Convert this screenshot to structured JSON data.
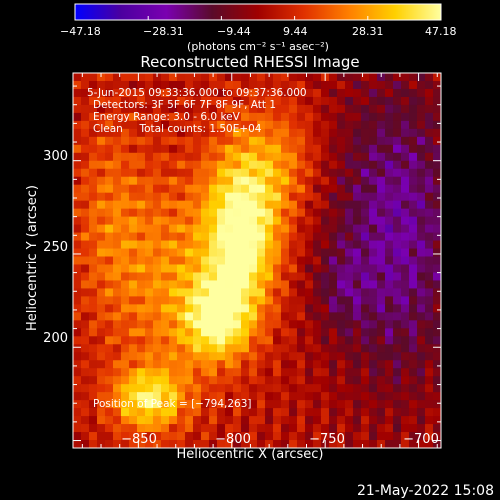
{
  "chart_data": {
    "type": "heatmap",
    "title": "Reconstructed RHESSI Image",
    "xlabel": "Heliocentric X (arcsec)",
    "ylabel": "Heliocentric Y (arcsec)",
    "xlim": [
      -885,
      -688
    ],
    "ylim": [
      146,
      347
    ],
    "x_ticks": [
      -850,
      -800,
      -750,
      -700
    ],
    "y_ticks": [
      200,
      250,
      300
    ],
    "x_tick_labels": [
      "−850",
      "−800",
      "−750",
      "−700"
    ],
    "y_tick_labels": [
      "200",
      "250",
      "300"
    ],
    "colorbar": {
      "min": -47.18,
      "max": 47.18,
      "ticks": [
        -47.18,
        -28.31,
        -9.44,
        9.44,
        28.31,
        47.18
      ],
      "tick_labels": [
        "−47.18",
        "−28.31",
        "−9.44",
        "9.44",
        "28.31",
        "47.18"
      ],
      "units_label": "(photons cm⁻² s⁻¹ asec⁻²)"
    },
    "colormap": [
      "#0000ff",
      "#4b00a0",
      "#7a00b0",
      "#5a0a2a",
      "#a00000",
      "#e03000",
      "#ff8000",
      "#ffd000",
      "#ffffa0"
    ],
    "annotations": [
      "5-Jun-2015 09:33:36.000 to 09:37:36.000",
      "Detectors: 3F 5F 6F 7F 8F 9F, Att 1",
      "Energy Range: 3.0 - 6.0 keV",
      "Clean     Total counts: 1.50E+04"
    ],
    "peak": {
      "label": "Position of Peak = [−794,263]",
      "x": -794,
      "y": 263,
      "value": 47.18
    },
    "sources": [
      {
        "x": -794,
        "y": 263,
        "sx": 14,
        "sy": 32,
        "amp": 47
      },
      {
        "x": -808,
        "y": 215,
        "sx": 12,
        "sy": 15,
        "amp": 36
      },
      {
        "x": -845,
        "y": 172,
        "sx": 14,
        "sy": 12,
        "amp": 34
      },
      {
        "x": -832,
        "y": 235,
        "sx": 22,
        "sy": 42,
        "amp": 20
      },
      {
        "x": -772,
        "y": 300,
        "sx": 14,
        "sy": 22,
        "amp": 16
      },
      {
        "x": -866,
        "y": 270,
        "sx": 14,
        "sy": 40,
        "amp": 14
      }
    ],
    "negative_regions": [
      {
        "x": -712,
        "y": 262,
        "sx": 26,
        "sy": 62,
        "amp": -26
      },
      {
        "x": -742,
        "y": 232,
        "sx": 10,
        "sy": 16,
        "amp": -10
      }
    ],
    "background": 4,
    "timestamp": "21-May-2022 15:08"
  }
}
